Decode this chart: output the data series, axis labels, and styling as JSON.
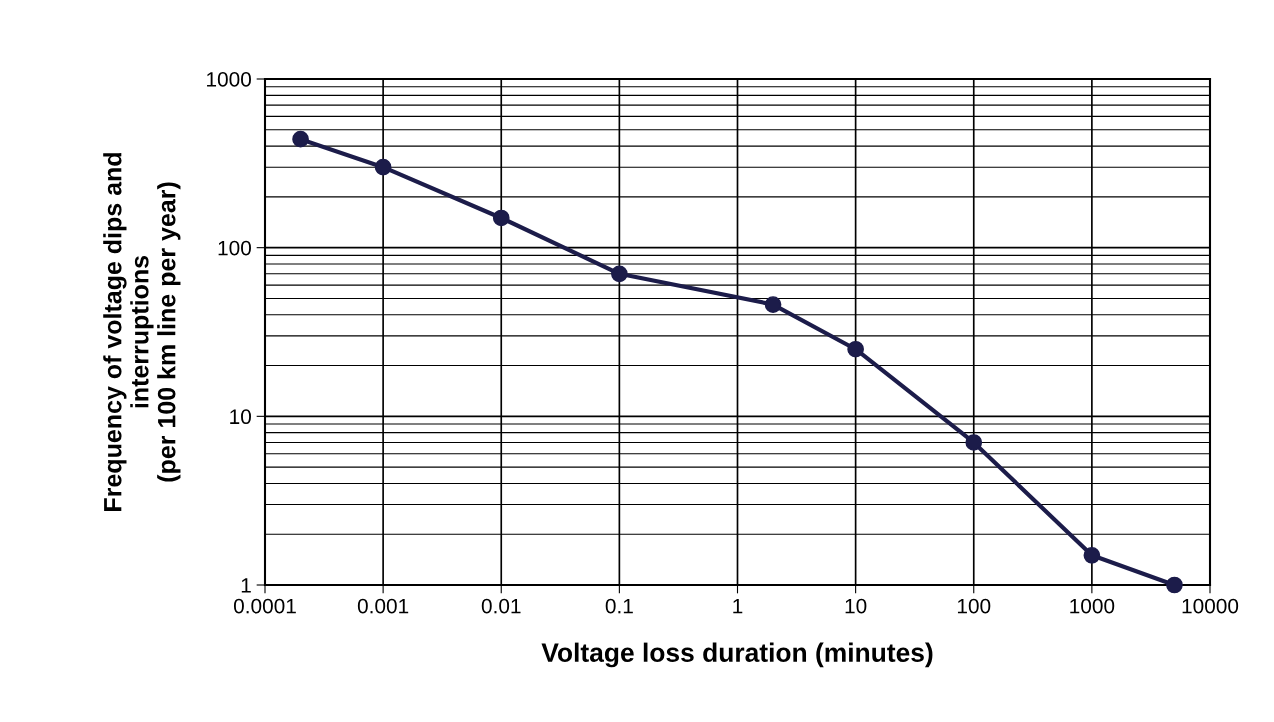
{
  "chart_data": {
    "type": "line",
    "xlabel": "Voltage loss duration (minutes)",
    "ylabel": "Frequency of voltage dips and\ninterruptions\n(per 100 km line per year)",
    "x": [
      0.0002,
      0.001,
      0.01,
      0.1,
      2,
      10,
      100,
      1000,
      5000
    ],
    "series": [
      {
        "color": "#1c1c4a",
        "values": [
          440,
          300,
          150,
          70,
          46,
          25,
          7,
          1.5,
          1
        ]
      }
    ],
    "log": "xy",
    "xlim": [
      0.0001,
      10000
    ],
    "ylim": [
      1,
      1000
    ],
    "xticks": [
      {
        "value": 0.0001,
        "label": "0.0001"
      },
      {
        "value": 0.001,
        "label": "0.001"
      },
      {
        "value": 0.01,
        "label": "0.01"
      },
      {
        "value": 0.1,
        "label": "0.1"
      },
      1,
      10,
      100,
      1000,
      10000
    ],
    "yticks": [
      1,
      10,
      100,
      1000
    ],
    "grid": true,
    "marker": "circle",
    "line_style": "solid"
  }
}
